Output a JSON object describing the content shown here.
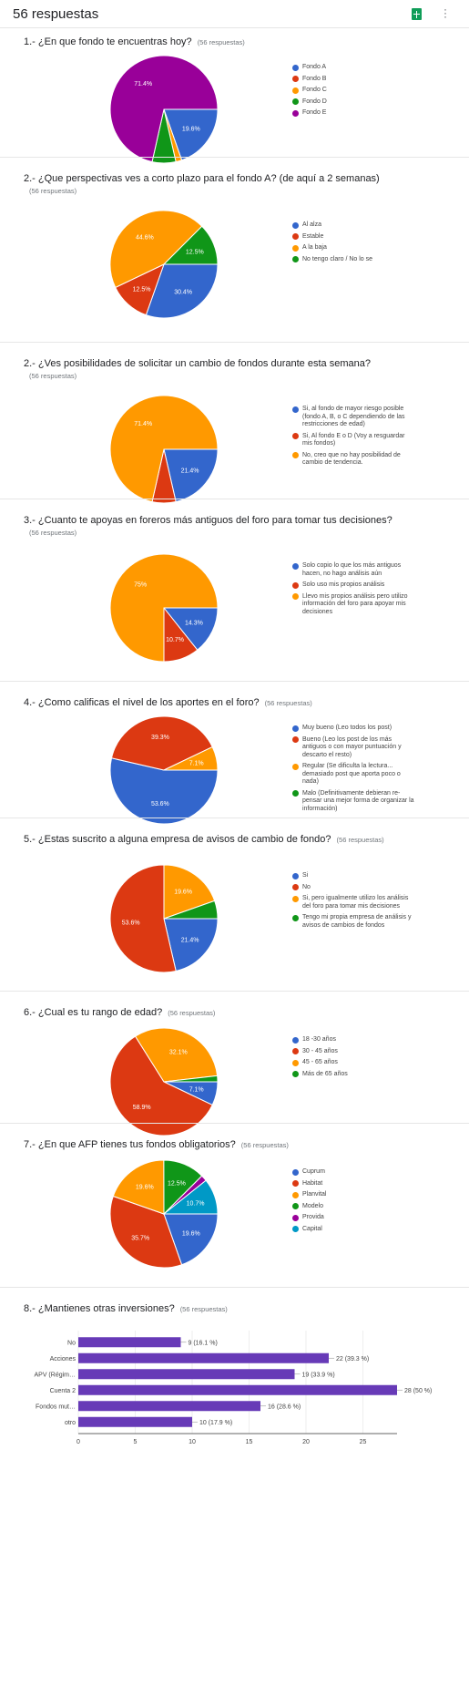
{
  "header": {
    "title": "56 respuestas"
  },
  "chart_data": [
    {
      "type": "pie",
      "title": "1.- ¿En que fondo te encuentras hoy?",
      "subtitle": "(56 respuestas)",
      "categories": [
        "Fondo A",
        "Fondo B",
        "Fondo C",
        "Fondo D",
        "Fondo E"
      ],
      "values": [
        19.6,
        0,
        1.8,
        7.1,
        71.4
      ],
      "value_labels": [
        "19.6%",
        null,
        null,
        null,
        "71.4%"
      ],
      "colors": [
        "#3366cc",
        "#dc3912",
        "#ff9900",
        "#109618",
        "#990099"
      ]
    },
    {
      "type": "pie",
      "title": "2.- ¿Que perspectivas ves a corto plazo para el fondo A? (de aquí a 2 semanas)",
      "subtitle": "(56 respuestas)",
      "categories": [
        "Al alza",
        "Estable",
        "A la baja",
        "No tengo claro / No lo se"
      ],
      "values": [
        30.4,
        12.5,
        44.6,
        12.5
      ],
      "value_labels": [
        "30.4%",
        "12.5%",
        "44.6%",
        "12.5%"
      ],
      "colors": [
        "#3366cc",
        "#dc3912",
        "#ff9900",
        "#109618"
      ]
    },
    {
      "type": "pie",
      "title": "2.- ¿Ves posibilidades de solicitar un cambio de fondos durante esta semana?",
      "subtitle": "(56 respuestas)",
      "categories": [
        "Si, al fondo de mayor riesgo posible (fondo A, B, o C dependiendo de las restricciones de edad)",
        "Si, Al fondo E o D (Voy a resguardar mis fondos)",
        "No, creo que no hay posibilidad de cambio de tendencia."
      ],
      "values": [
        21.4,
        7.1,
        71.4
      ],
      "value_labels": [
        "21.4%",
        null,
        "71.4%"
      ],
      "colors": [
        "#3366cc",
        "#dc3912",
        "#ff9900"
      ]
    },
    {
      "type": "pie",
      "title": "3.- ¿Cuanto te apoyas en foreros más antiguos del foro para tomar tus decisiones?",
      "subtitle": "(56 respuestas)",
      "categories": [
        "Solo copio lo que los más antiguos hacen, no hago análisis aún",
        "Solo uso mis propios análisis",
        "Llevo mis propios análisis pero utilizo información del foro para apoyar mis decisiones"
      ],
      "values": [
        14.3,
        10.7,
        75
      ],
      "value_labels": [
        "14.3%",
        "10.7%",
        "75%"
      ],
      "colors": [
        "#3366cc",
        "#dc3912",
        "#ff9900"
      ]
    },
    {
      "type": "pie",
      "title": "4.- ¿Como calificas el nivel de los aportes en el foro?",
      "subtitle": "(56 respuestas)",
      "categories": [
        "Muy bueno (Leo todos los post)",
        "Bueno (Leo los post de los más antiguos o con mayor puntuación y descarto el resto)",
        "Regular (Se dificulta la lectura... demasiado post que aporta poco o nada)",
        "Malo (Definitivamente debieran re-pensar una mejor forma de organizar la información)"
      ],
      "values": [
        53.6,
        39.3,
        7.1,
        0
      ],
      "value_labels": [
        "53.6%",
        "39.3%",
        "7.1%",
        null
      ],
      "colors": [
        "#3366cc",
        "#dc3912",
        "#ff9900",
        "#109618"
      ]
    },
    {
      "type": "pie",
      "title": "5.- ¿Estas suscrito a alguna empresa de avisos de cambio de fondo?",
      "subtitle": "(56 respuestas)",
      "categories": [
        "Si",
        "No",
        "Si, pero igualmente utilizo los análisis del foro para tomar mis decisiones",
        "Tengo mi propia empresa de análisis y avisos de cambios de fondos"
      ],
      "values": [
        21.4,
        53.6,
        19.6,
        5.4
      ],
      "value_labels": [
        "21.4%",
        "53.6%",
        "19.6%",
        null
      ],
      "colors": [
        "#3366cc",
        "#dc3912",
        "#ff9900",
        "#109618"
      ]
    },
    {
      "type": "pie",
      "title": "6.- ¿Cual es tu rango de edad?",
      "subtitle": "(56 respuestas)",
      "categories": [
        "18 -30 años",
        "30 - 45 años",
        "45 - 65 años",
        "Más de 65 años"
      ],
      "values": [
        7.1,
        58.9,
        32.1,
        1.8
      ],
      "value_labels": [
        "7.1%",
        "58.9%",
        "32.1%",
        null
      ],
      "colors": [
        "#3366cc",
        "#dc3912",
        "#ff9900",
        "#109618"
      ]
    },
    {
      "type": "pie",
      "title": "7.- ¿En que AFP tienes tus fondos obligatorios?",
      "subtitle": "(56 respuestas)",
      "categories": [
        "Cuprum",
        "Habitat",
        "Planvital",
        "Modelo",
        "Provida",
        "Capital"
      ],
      "values": [
        19.6,
        35.7,
        19.6,
        12.5,
        1.8,
        10.7
      ],
      "value_labels": [
        "19.6%",
        "35.7%",
        "19.6%",
        "12.5%",
        null,
        "10.7%"
      ],
      "colors": [
        "#3366cc",
        "#dc3912",
        "#ff9900",
        "#109618",
        "#990099",
        "#0099c6"
      ]
    },
    {
      "type": "bar",
      "orientation": "horizontal",
      "title": "8.- ¿Mantienes otras inversiones?",
      "subtitle": "(56 respuestas)",
      "categories": [
        "No",
        "Acciones",
        "APV (Régim…",
        "Cuenta 2",
        "Fondos mut…",
        "otro"
      ],
      "values": [
        9,
        22,
        19,
        28,
        16,
        10
      ],
      "value_labels": [
        "9 (16.1 %)",
        "22 (39.3 %)",
        "19 (33.9 %)",
        "28 (50 %)",
        "16 (28.6 %)",
        "10 (17.9 %)"
      ],
      "color": "#673ab7",
      "xlim": [
        0,
        28
      ],
      "xticks": [
        0,
        5,
        10,
        15,
        20,
        25
      ],
      "grid": true
    }
  ]
}
